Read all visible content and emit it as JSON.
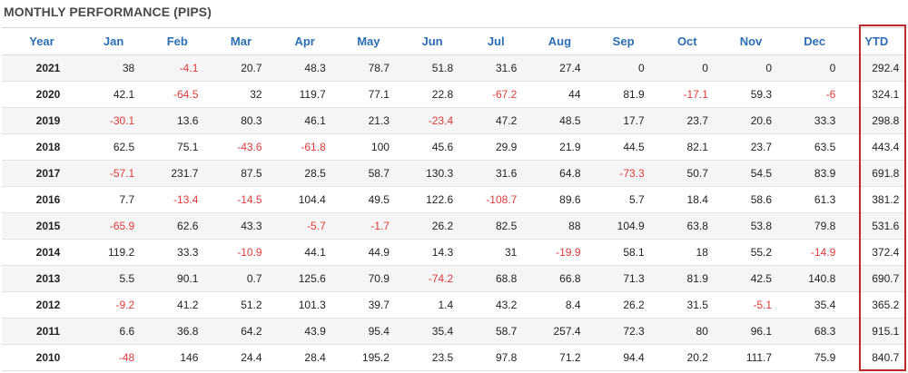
{
  "title": "MONTHLY PERFORMANCE (PIPS)",
  "colors": {
    "header": "#2c6fb4",
    "negative": "#e03a3a",
    "highlight_box": "#c0282a"
  },
  "table": {
    "headers": [
      "Year",
      "Jan",
      "Feb",
      "Mar",
      "Apr",
      "May",
      "Jun",
      "Jul",
      "Aug",
      "Sep",
      "Oct",
      "Nov",
      "Dec",
      "YTD"
    ],
    "rows": [
      [
        "2021",
        "38",
        "-4.1",
        "20.7",
        "48.3",
        "78.7",
        "51.8",
        "31.6",
        "27.4",
        "0",
        "0",
        "0",
        "0",
        "292.4"
      ],
      [
        "2020",
        "42.1",
        "-64.5",
        "32",
        "119.7",
        "77.1",
        "22.8",
        "-67.2",
        "44",
        "81.9",
        "-17.1",
        "59.3",
        "-6",
        "324.1"
      ],
      [
        "2019",
        "-30.1",
        "13.6",
        "80.3",
        "46.1",
        "21.3",
        "-23.4",
        "47.2",
        "48.5",
        "17.7",
        "23.7",
        "20.6",
        "33.3",
        "298.8"
      ],
      [
        "2018",
        "62.5",
        "75.1",
        "-43.6",
        "-61.8",
        "100",
        "45.6",
        "29.9",
        "21.9",
        "44.5",
        "82.1",
        "23.7",
        "63.5",
        "443.4"
      ],
      [
        "2017",
        "-57.1",
        "231.7",
        "87.5",
        "28.5",
        "58.7",
        "130.3",
        "31.6",
        "64.8",
        "-73.3",
        "50.7",
        "54.5",
        "83.9",
        "691.8"
      ],
      [
        "2016",
        "7.7",
        "-13.4",
        "-14.5",
        "104.4",
        "49.5",
        "122.6",
        "-108.7",
        "89.6",
        "5.7",
        "18.4",
        "58.6",
        "61.3",
        "381.2"
      ],
      [
        "2015",
        "-65.9",
        "62.6",
        "43.3",
        "-5.7",
        "-1.7",
        "26.2",
        "82.5",
        "88",
        "104.9",
        "63.8",
        "53.8",
        "79.8",
        "531.6"
      ],
      [
        "2014",
        "119.2",
        "33.3",
        "-10.9",
        "44.1",
        "44.9",
        "14.3",
        "31",
        "-19.9",
        "58.1",
        "18",
        "55.2",
        "-14.9",
        "372.4"
      ],
      [
        "2013",
        "5.5",
        "90.1",
        "0.7",
        "125.6",
        "70.9",
        "-74.2",
        "68.8",
        "66.8",
        "71.3",
        "81.9",
        "42.5",
        "140.8",
        "690.7"
      ],
      [
        "2012",
        "-9.2",
        "41.2",
        "51.2",
        "101.3",
        "39.7",
        "1.4",
        "43.2",
        "8.4",
        "26.2",
        "31.5",
        "-5.1",
        "35.4",
        "365.2"
      ],
      [
        "2011",
        "6.6",
        "36.8",
        "64.2",
        "43.9",
        "95.4",
        "35.4",
        "58.7",
        "257.4",
        "72.3",
        "80",
        "96.1",
        "68.3",
        "915.1"
      ],
      [
        "2010",
        "-48",
        "146",
        "24.4",
        "28.4",
        "195.2",
        "23.5",
        "97.8",
        "71.2",
        "94.4",
        "20.2",
        "111.7",
        "75.9",
        "840.7"
      ]
    ]
  }
}
